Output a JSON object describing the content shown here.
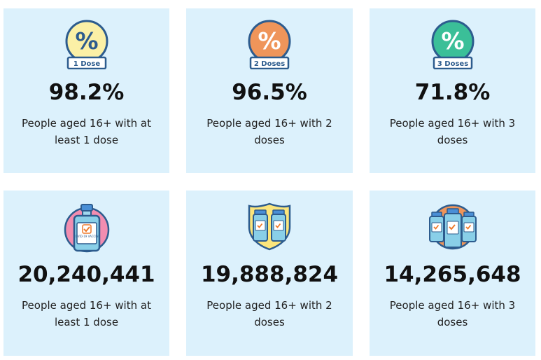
{
  "percent_cards": [
    {
      "badge": "1 Dose",
      "value": "98.2%",
      "description": "People aged 16+ with at least 1 dose",
      "color": "#fbf0a6"
    },
    {
      "badge": "2 Doses",
      "value": "96.5%",
      "description": "People aged 16+ with 2 doses",
      "color": "#ef955a"
    },
    {
      "badge": "3 Doses",
      "value": "71.8%",
      "description": "People aged 16+ with 3 doses",
      "color": "#3bbf98"
    }
  ],
  "count_cards": [
    {
      "value": "20,240,441",
      "description": "People aged 16+ with at least 1 dose",
      "icon": "single-vial-icon"
    },
    {
      "value": "19,888,824",
      "description": "People aged 16+ with 2 doses",
      "icon": "two-vials-shield-icon"
    },
    {
      "value": "14,265,648",
      "description": "People aged 16+ with 3 doses",
      "icon": "three-vials-icon"
    }
  ],
  "vial_label": "COVID-19 VACCINE",
  "colors": {
    "card_bg": "#dcf1fc",
    "outline": "#2d5c8e",
    "vial_blue": "#89cfe8",
    "check": "#ee7a2b"
  }
}
